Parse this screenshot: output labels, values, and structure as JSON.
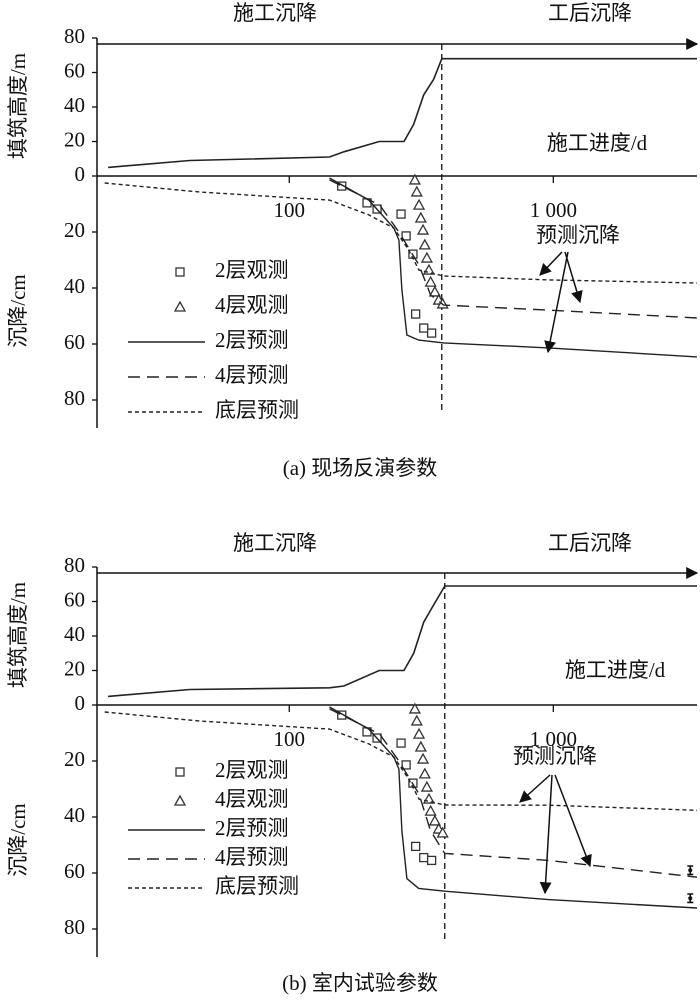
{
  "chart_data": [
    {
      "type": "line",
      "caption": "(a) 现场反演参数",
      "phase_labels": [
        "施工沉降",
        "工后沉降"
      ],
      "x_label": "施工进度/d",
      "annotation": "预测沉降",
      "log_x": true,
      "xlim": [
        18.7,
        3500
      ],
      "xticks": [
        100,
        {
          "value": 1000,
          "label": "1 000"
        }
      ],
      "fill": {
        "y_label": "填筑高度/m",
        "ylim": [
          0,
          80
        ],
        "yticks": [
          0,
          20,
          40,
          60,
          80
        ],
        "x": [
          20.6,
          42,
          142,
          161,
          219,
          272,
          296,
          323,
          352,
          378,
          3500
        ],
        "values": [
          5,
          9,
          11,
          14,
          20,
          20,
          30,
          47,
          56,
          68,
          68
        ],
        "color": "#222222"
      },
      "settlement": {
        "y_label": "沉降/cm",
        "ylim": [
          0,
          90
        ],
        "yticks": [
          20,
          40,
          60,
          80
        ],
        "inverted": true,
        "series": [
          {
            "name": "2层观测",
            "marker": "square",
            "color": "#333333",
            "x": [
              158,
              197,
              215,
              265,
              277,
              294,
              301,
              323,
              346
            ],
            "values": [
              3.6,
              9.6,
              11.8,
              13.6,
              21.4,
              27.9,
              49.3,
              54.3,
              56.1
            ]
          },
          {
            "name": "4层观测",
            "marker": "triangle",
            "color": "#333333",
            "x": [
              299,
              304,
              310,
              315,
              321,
              326,
              332,
              338,
              343,
              356,
              368,
              381
            ],
            "values": [
              1.4,
              5.7,
              10.4,
              15,
              19.3,
              24.6,
              29.3,
              33.6,
              37.9,
              41.4,
              44.3,
              45.7
            ]
          },
          {
            "name": "2层预测",
            "line": "solid",
            "color": "#222222",
            "x": [
              142,
              200,
              249,
              260,
              267,
              279,
              309,
              384,
              957,
              3500
            ],
            "values": [
              0.7,
              8.6,
              18.6,
              22.9,
              40.7,
              56.8,
              58.6,
              59.6,
              61.4,
              64.6
            ]
          },
          {
            "name": "4层预测",
            "line": "dashed",
            "color": "#222222",
            "x": [
              142,
              220,
              260,
              310,
              343,
              384,
              957,
              3500
            ],
            "values": [
              1.4,
              10.4,
              20,
              31.8,
              42.5,
              46.1,
              47.9,
              50.7
            ]
          },
          {
            "name": "底层预测",
            "line": "dotted",
            "color": "#222222",
            "x": [
              20,
              45.7,
              142,
              200,
              249,
              283,
              310,
              384,
              957,
              3500
            ],
            "values": [
              2.5,
              5.7,
              8.6,
              13.9,
              18.6,
              26.4,
              33.6,
              35.7,
              37.1,
              38.2
            ]
          }
        ]
      }
    },
    {
      "type": "line",
      "caption": "(b) 室内试验参数",
      "phase_labels": [
        "施工沉降",
        "工后沉降"
      ],
      "x_label": "施工进度/d",
      "annotation": "预测沉降",
      "log_x": true,
      "xlim": [
        18.7,
        3500
      ],
      "xticks": [
        100,
        {
          "value": 1000,
          "label": "1 000"
        }
      ],
      "fill": {
        "y_label": "填筑高度/m",
        "ylim": [
          0,
          80
        ],
        "yticks": [
          0,
          20,
          40,
          60,
          80
        ],
        "x": [
          20.6,
          42,
          142,
          161,
          219,
          272,
          296,
          323,
          352,
          388,
          3500
        ],
        "values": [
          5,
          9,
          10,
          11,
          20,
          20,
          30,
          48,
          58,
          69,
          69
        ],
        "color": "#222222"
      },
      "settlement": {
        "y_label": "沉降/cm",
        "ylim": [
          0,
          90
        ],
        "yticks": [
          20,
          40,
          60,
          80
        ],
        "inverted": true,
        "series": [
          {
            "name": "2层观测",
            "marker": "square",
            "color": "#333333",
            "x": [
              158,
              197,
              215,
              265,
              277,
              294,
              301,
              323,
              346
            ],
            "values": [
              3.6,
              9.6,
              11.8,
              13.6,
              21.4,
              27.9,
              50.5,
              54.5,
              55.5
            ]
          },
          {
            "name": "4层观测",
            "marker": "triangle",
            "color": "#333333",
            "x": [
              299,
              304,
              310,
              315,
              321,
              326,
              332,
              338,
              343,
              356,
              368,
              381
            ],
            "values": [
              1.4,
              5.7,
              10.4,
              15,
              19.3,
              24.6,
              29.3,
              33.6,
              37.9,
              41.4,
              44.3,
              45.7
            ]
          },
          {
            "name": "2层预测",
            "line": "solid",
            "color": "#222222",
            "x": [
              142,
              200,
              249,
              260,
              267,
              279,
              309,
              388,
              957,
              3500
            ],
            "values": [
              0.7,
              8.6,
              18.6,
              22.9,
              45,
              62,
              65.5,
              66.5,
              69.5,
              72.5
            ]
          },
          {
            "name": "4层预测",
            "line": "dashed",
            "color": "#222222",
            "x": [
              142,
              220,
              260,
              310,
              343,
              388,
              957,
              3500
            ],
            "values": [
              1.4,
              10.4,
              20,
              31.8,
              45,
              53,
              55.5,
              61.5
            ]
          },
          {
            "name": "底层预测",
            "line": "dotted",
            "color": "#222222",
            "x": [
              20,
              45.7,
              142,
              200,
              249,
              283,
              310,
              388,
              957,
              3500
            ],
            "values": [
              2.5,
              5.7,
              8.6,
              13.9,
              18.6,
              26.4,
              33.6,
              35.7,
              35.8,
              37.6
            ]
          }
        ],
        "errorbars": {
          "x": [
            3300,
            3300
          ],
          "values": [
            59,
            69
          ],
          "errors": [
            1.5,
            1.5
          ]
        }
      }
    }
  ]
}
